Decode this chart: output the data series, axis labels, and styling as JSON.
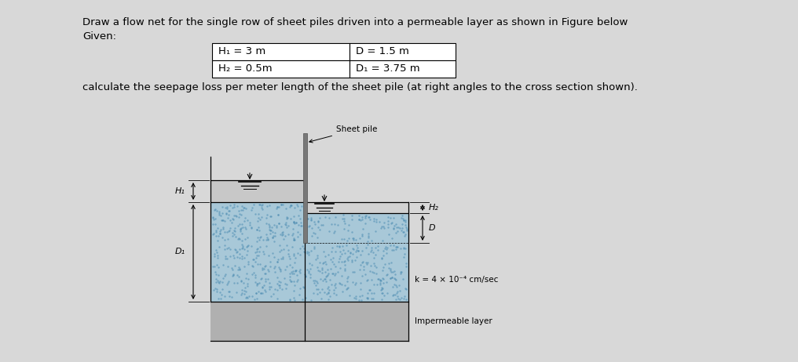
{
  "bg_color": "#d8d8d8",
  "title_line1": "Draw a flow net for the single row of sheet piles driven into a permeable layer as shown in Figure below",
  "title_line2": "Given:",
  "subtitle": "calculate the seepage loss per meter length of the sheet pile (at right angles to the cross section shown).",
  "table": {
    "row1_col1": "H₁ = 3 m",
    "row1_col2": "D = 1.5 m",
    "row2_col1": "H₂ = 0.5m",
    "row2_col2": "D₁ = 3.75 m"
  },
  "labels": {
    "sheet_pile": "Sheet pile",
    "H1": "H₁",
    "H2": "H₂",
    "D": "D",
    "D1": "D₁",
    "k": "k = 4 × 10⁻⁴ cm/sec",
    "impermeable": "Impermeable layer"
  },
  "colors": {
    "water_gray_left": "#c8c8c8",
    "water_gray_right": "#d2d2d2",
    "soil_blue": "#a8c8d8",
    "soil_dots": "#4a8ab0",
    "impermeable_gray": "#b0b0b0",
    "pile_gray": "#787878",
    "white": "#ffffff",
    "black": "#000000"
  },
  "fontsize_title": 9.5,
  "fontsize_label": 8.0,
  "fontsize_annot": 7.5
}
